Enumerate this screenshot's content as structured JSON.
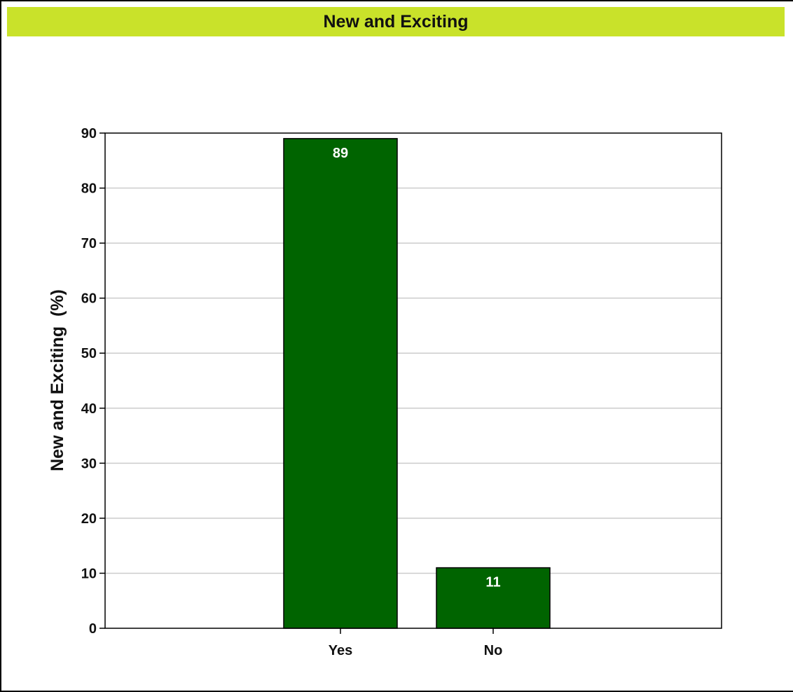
{
  "header": {
    "title": "New and Exciting",
    "bg_color": "#c9e22a"
  },
  "chart_data": {
    "type": "bar",
    "title": "New and Exciting",
    "categories": [
      "Yes",
      "No"
    ],
    "values": [
      89,
      11
    ],
    "data_labels": [
      "89",
      "11"
    ],
    "xlabel": "",
    "ylabel": "New and Exciting  (%)",
    "ylim": [
      0,
      90
    ],
    "yticks": [
      0,
      10,
      20,
      30,
      40,
      50,
      60,
      70,
      80,
      90
    ],
    "grid": true,
    "legend": "none",
    "bar_color": "#006400",
    "grid_color": "#cccccc",
    "label_color": "#ffffff"
  }
}
